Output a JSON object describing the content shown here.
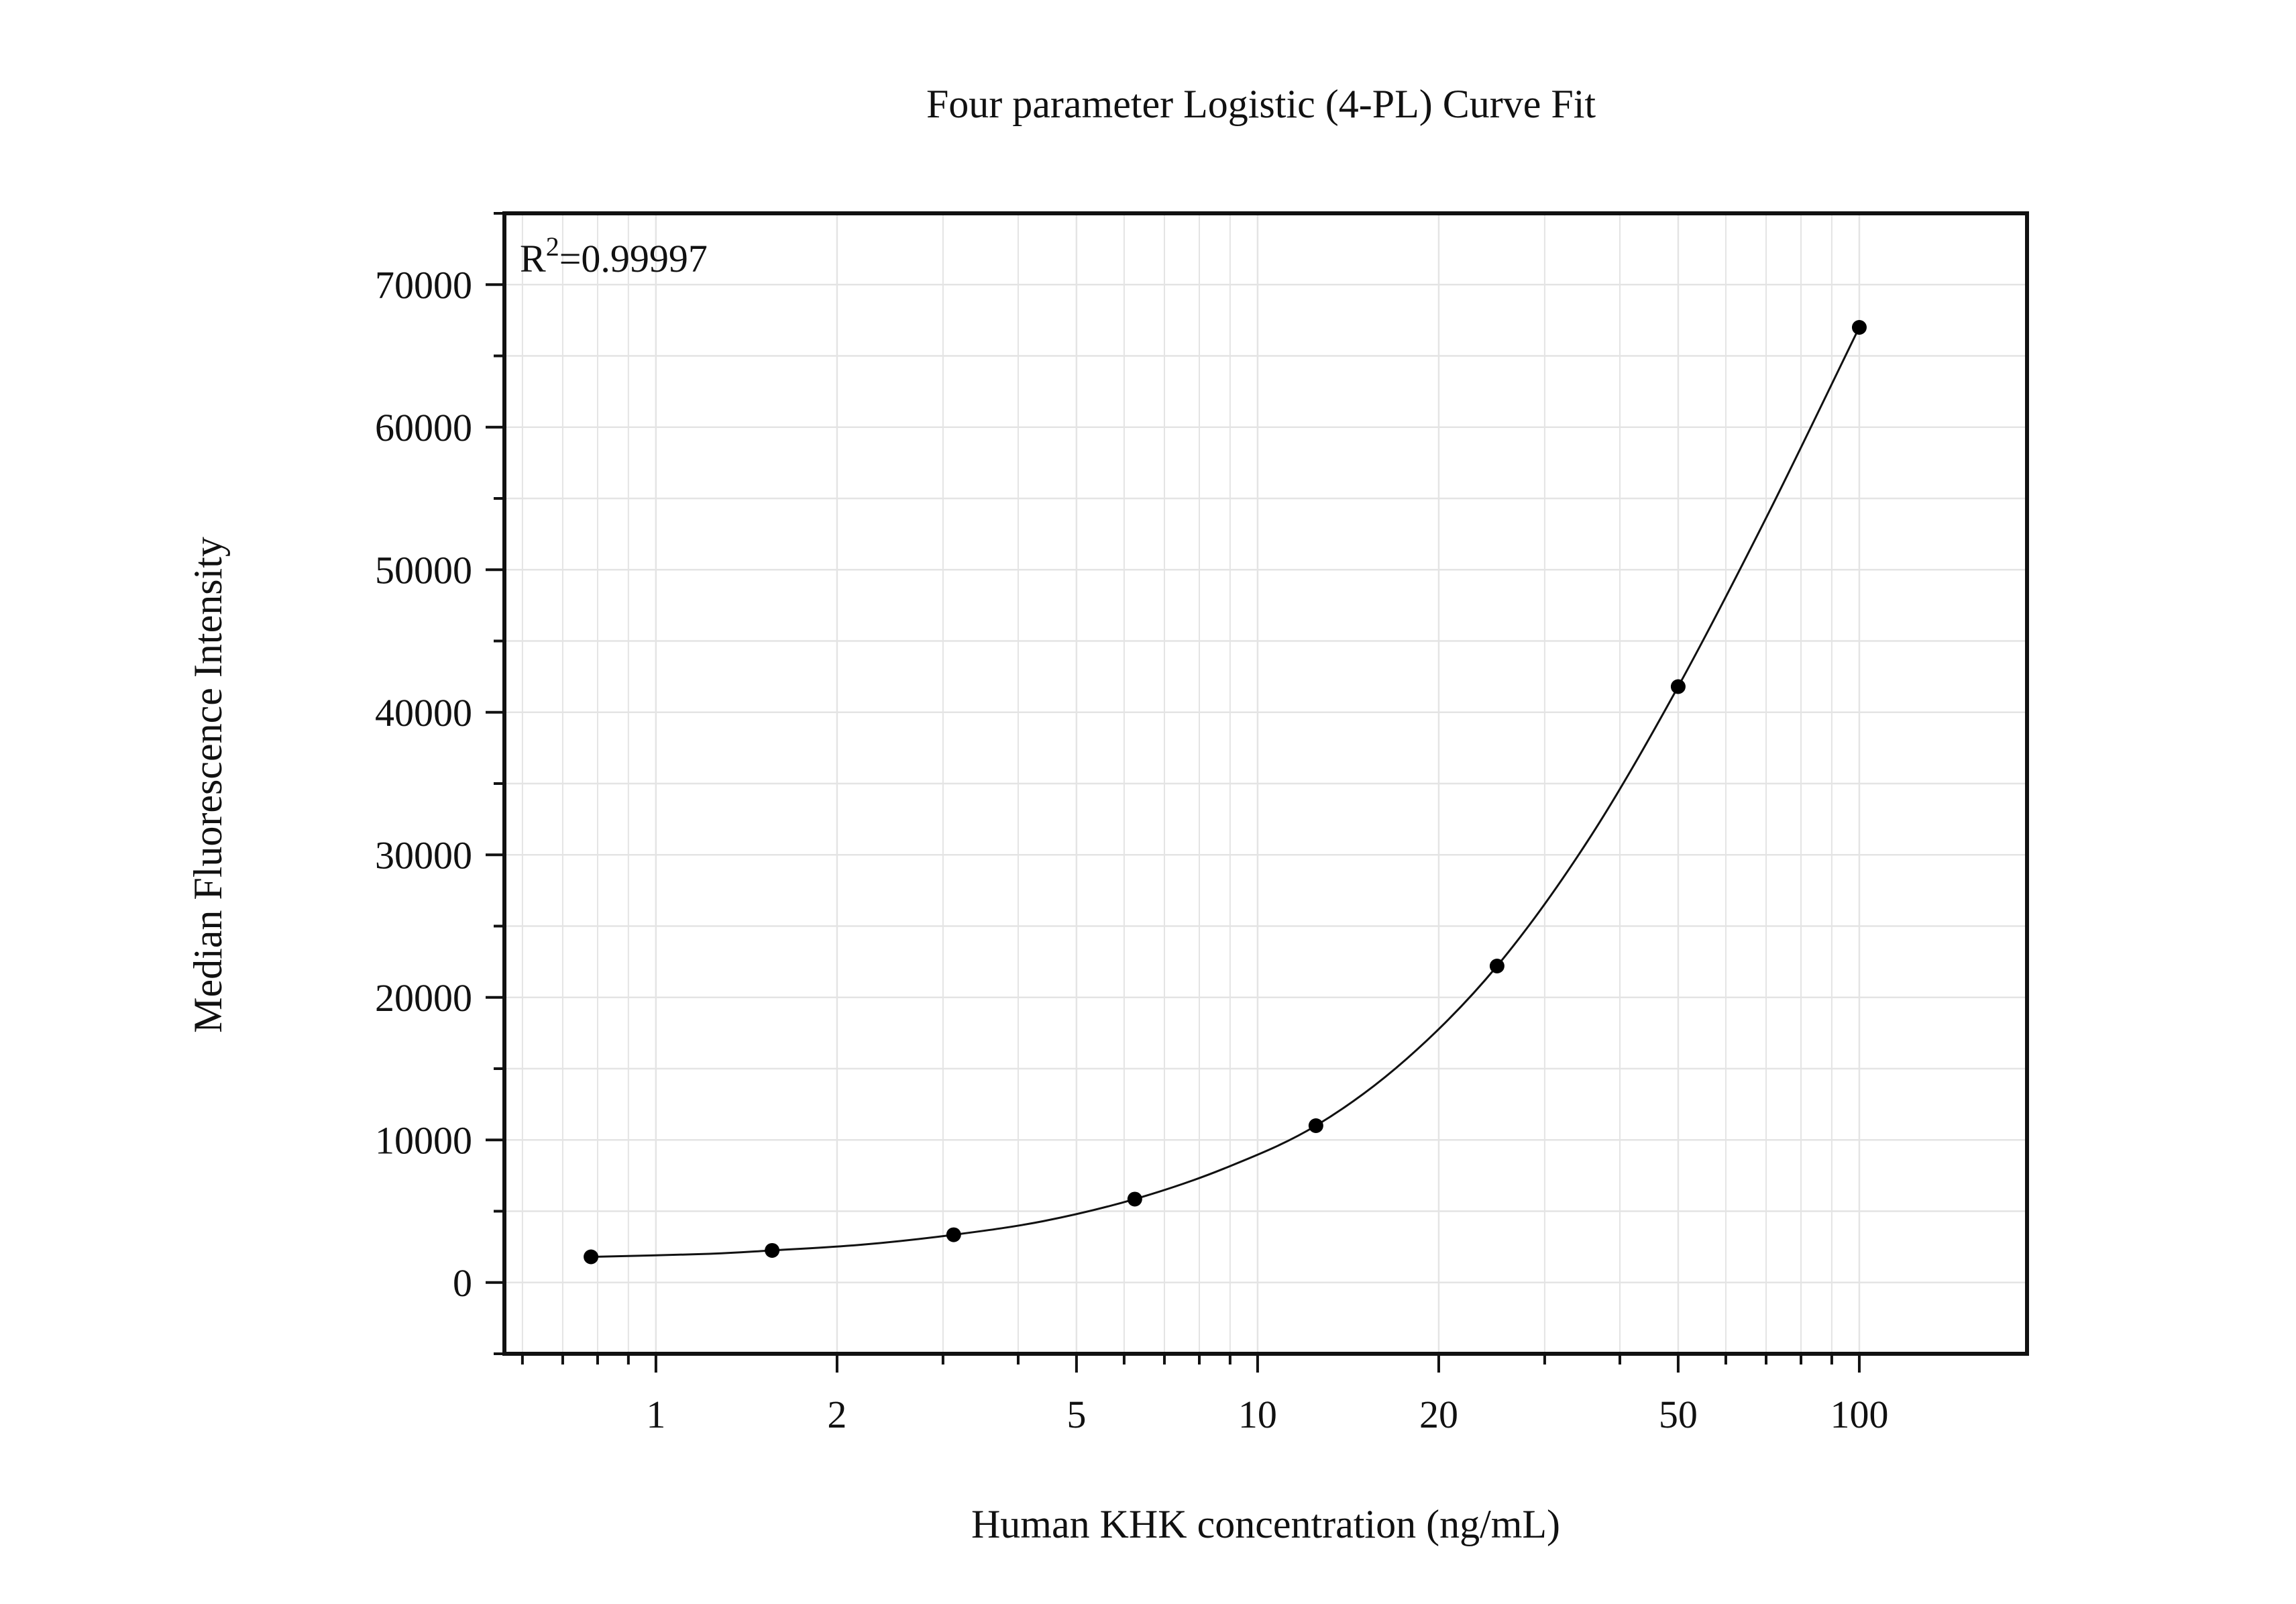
{
  "chart_data": {
    "type": "scatter",
    "title": "Four parameter Logistic (4-PL) Curve Fit",
    "xlabel": "Human KHK concentration (ng/mL)",
    "ylabel": "Median Fluorescence Intensity",
    "annotation": {
      "base": "R",
      "superscript": "2",
      "value": "=0.99997"
    },
    "x_scale": "log",
    "xlim": [
      0.56,
      190
    ],
    "ylim": [
      -5000,
      75000
    ],
    "x_ticks": [
      1,
      2,
      5,
      10,
      20,
      50,
      100
    ],
    "x_tick_labels": [
      "1",
      "2",
      "5",
      "10",
      "20",
      "50",
      "100"
    ],
    "y_ticks": [
      0,
      10000,
      20000,
      30000,
      40000,
      50000,
      60000,
      70000
    ],
    "y_tick_labels": [
      "0",
      "10000",
      "20000",
      "30000",
      "40000",
      "50000",
      "60000",
      "70000"
    ],
    "grid": true,
    "series": [
      {
        "points": [
          {
            "x": 0.78,
            "y": 1800
          },
          {
            "x": 1.56,
            "y": 2250
          },
          {
            "x": 3.125,
            "y": 3350
          },
          {
            "x": 6.25,
            "y": 5850
          },
          {
            "x": 12.5,
            "y": 11000
          },
          {
            "x": 25,
            "y": 22200
          },
          {
            "x": 50,
            "y": 41800
          },
          {
            "x": 100,
            "y": 67000
          }
        ]
      }
    ],
    "fit_curve": {
      "model": "4PL",
      "points": [
        {
          "x": 0.78,
          "y": 1800
        },
        {
          "x": 1.2,
          "y": 2000
        },
        {
          "x": 1.56,
          "y": 2250
        },
        {
          "x": 2.2,
          "y": 2650
        },
        {
          "x": 3.125,
          "y": 3350
        },
        {
          "x": 4.4,
          "y": 4300
        },
        {
          "x": 6.25,
          "y": 5850
        },
        {
          "x": 8.8,
          "y": 8000
        },
        {
          "x": 12.5,
          "y": 11000
        },
        {
          "x": 17.7,
          "y": 15700
        },
        {
          "x": 25,
          "y": 22200
        },
        {
          "x": 35.4,
          "y": 31000
        },
        {
          "x": 50,
          "y": 41800
        },
        {
          "x": 70.7,
          "y": 54000
        },
        {
          "x": 100,
          "y": 67000
        }
      ]
    }
  }
}
